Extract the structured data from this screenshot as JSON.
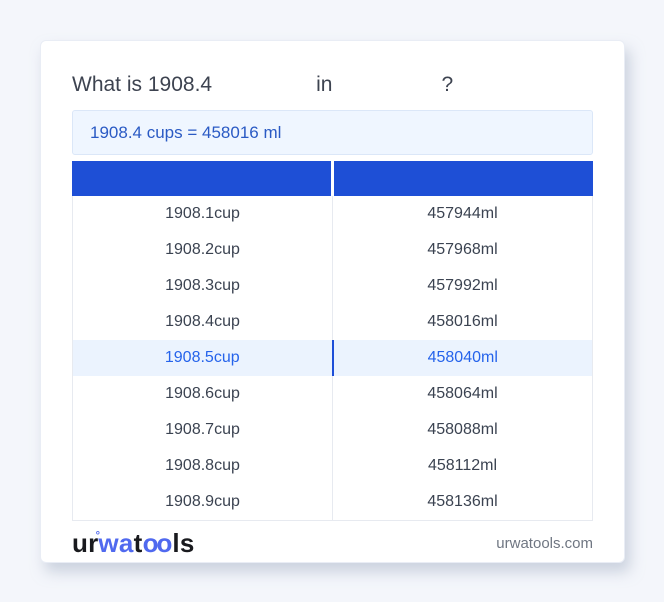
{
  "question": {
    "part1": "What is 1908.4",
    "connector": "in",
    "suffix": "?"
  },
  "result": {
    "text": "1908.4 cups = 458016 ml"
  },
  "table": {
    "header": {
      "col1_label": "",
      "col2_label": ""
    },
    "rows": [
      {
        "cup": "1908.1cup",
        "ml": "457944ml",
        "highlighted": false
      },
      {
        "cup": "1908.2cup",
        "ml": "457968ml",
        "highlighted": false
      },
      {
        "cup": "1908.3cup",
        "ml": "457992ml",
        "highlighted": false
      },
      {
        "cup": "1908.4cup",
        "ml": "458016ml",
        "highlighted": false
      },
      {
        "cup": "1908.5cup",
        "ml": "458040ml",
        "highlighted": true
      },
      {
        "cup": "1908.6cup",
        "ml": "458064ml",
        "highlighted": false
      },
      {
        "cup": "1908.7cup",
        "ml": "458088ml",
        "highlighted": false
      },
      {
        "cup": "1908.8cup",
        "ml": "458112ml",
        "highlighted": false
      },
      {
        "cup": "1908.9cup",
        "ml": "458136ml",
        "highlighted": false
      }
    ]
  },
  "footer": {
    "logo": {
      "seg1": "ur",
      "degree": "°",
      "seg2": "wa",
      "seg3": "t",
      "seg4": "oo",
      "seg5": "ls"
    },
    "site": "urwatools.com"
  },
  "colors": {
    "page_background": "#f4f6fb",
    "header_blue": "#1e4fd6",
    "highlight_row_bg": "#ebf3fe",
    "highlight_text": "#2563eb",
    "result_box_bg": "#eff6ff",
    "result_text": "#2a5ac4",
    "logo_blue": "#5069ef"
  }
}
